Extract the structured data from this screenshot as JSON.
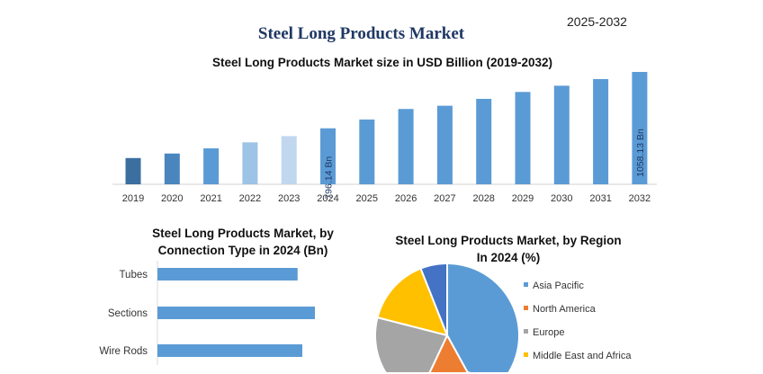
{
  "header": {
    "title": "Steel Long Products Market",
    "period": "2025-2032"
  },
  "chart_data": [
    {
      "type": "bar",
      "title": "Steel Long Products Market size in USD Billion (2019-2032)",
      "categories": [
        "2019",
        "2020",
        "2021",
        "2022",
        "2023",
        "2024",
        "2025",
        "2026",
        "2027",
        "2028",
        "2029",
        "2030",
        "2031",
        "2032"
      ],
      "values": [
        658,
        679,
        703,
        731,
        760,
        796.14,
        837,
        886,
        901,
        933,
        965,
        994,
        1025,
        1058.13
      ],
      "data_labels": {
        "2024": "796.14 Bn",
        "2032": "1058.13 Bn"
      },
      "colors": [
        "#3b6f9f",
        "#4a86bd",
        "#5b9bd5",
        "#9dc3e6",
        "#c0d7ee",
        "#5b9bd5",
        "#5b9bd5",
        "#5b9bd5",
        "#5b9bd5",
        "#5b9bd5",
        "#5b9bd5",
        "#5b9bd5",
        "#5b9bd5",
        "#5b9bd5"
      ],
      "ylim": [
        536,
        1090
      ],
      "grid": false
    },
    {
      "type": "bar",
      "orientation": "horizontal",
      "title_lines": [
        "Steel Long Products Market, by",
        "Connection Type in 2024 (Bn)"
      ],
      "categories": [
        "Tubes",
        "Sections",
        "Wire Rods"
      ],
      "values": [
        0.89,
        1.0,
        0.92
      ],
      "color": "#5b9bd5",
      "grid": false
    },
    {
      "type": "pie",
      "title_lines": [
        "Steel Long Products Market, by Region",
        "In 2024 (%)"
      ],
      "slices": [
        {
          "label": "Asia Pacific",
          "value": 42,
          "color": "#5b9bd5"
        },
        {
          "label": "North America",
          "value": 15,
          "color": "#ed7d31"
        },
        {
          "label": "Europe",
          "value": 22,
          "color": "#a5a5a5"
        },
        {
          "label": "Middle East and Africa",
          "value": 15,
          "color": "#ffc000"
        },
        {
          "label": "",
          "value": 6,
          "color": "#4472c4"
        }
      ],
      "legend_position": "right"
    }
  ]
}
